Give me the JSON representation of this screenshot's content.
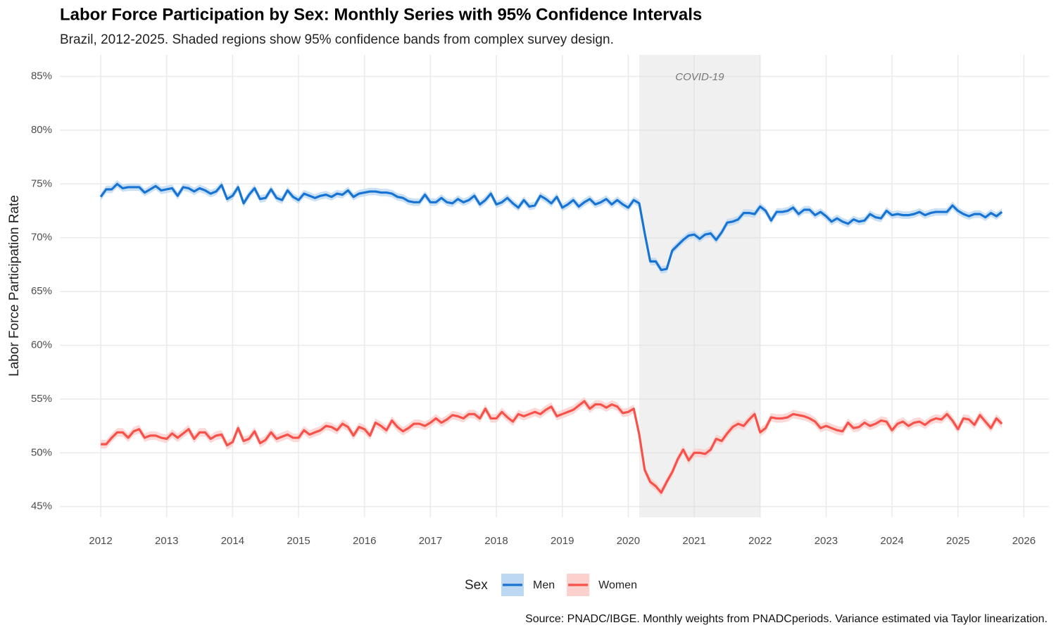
{
  "chart_data": {
    "type": "line",
    "title": "Labor Force Participation by Sex: Monthly Series with 95% Confidence Intervals",
    "subtitle": "Brazil, 2012-2025. Shaded regions show 95% confidence bands from complex survey design.",
    "y_label": "Labor Force Participation Rate",
    "caption": "Source: PNADC/IBGE. Monthly weights from PNADCperiods. Variance estimated via Taylor linearization.",
    "legend_title": "Sex",
    "legend_position": "bottom",
    "grid": true,
    "shaded_period": {
      "label": "COVID-19",
      "start": "2020-03",
      "end": "2022-01"
    },
    "xlim": [
      2011.38,
      2026.38
    ],
    "xticks": [
      2012,
      2013,
      2014,
      2015,
      2016,
      2017,
      2018,
      2019,
      2020,
      2021,
      2022,
      2023,
      2024,
      2025,
      2026
    ],
    "ylim": [
      44,
      87
    ],
    "yticks": [
      {
        "value": 45,
        "label": "45%"
      },
      {
        "value": 50,
        "label": "50%"
      },
      {
        "value": 55,
        "label": "55%"
      },
      {
        "value": 60,
        "label": "60%"
      },
      {
        "value": 65,
        "label": "65%"
      },
      {
        "value": 70,
        "label": "70%"
      },
      {
        "value": 75,
        "label": "75%"
      },
      {
        "value": 80,
        "label": "80%"
      },
      {
        "value": 85,
        "label": "85%"
      }
    ],
    "x": [
      "2012-01",
      "2012-02",
      "2012-03",
      "2012-04",
      "2012-05",
      "2012-06",
      "2012-07",
      "2012-08",
      "2012-09",
      "2012-10",
      "2012-11",
      "2012-12",
      "2013-01",
      "2013-02",
      "2013-03",
      "2013-04",
      "2013-05",
      "2013-06",
      "2013-07",
      "2013-08",
      "2013-09",
      "2013-10",
      "2013-11",
      "2013-12",
      "2014-01",
      "2014-02",
      "2014-03",
      "2014-04",
      "2014-05",
      "2014-06",
      "2014-07",
      "2014-08",
      "2014-09",
      "2014-10",
      "2014-11",
      "2014-12",
      "2015-01",
      "2015-02",
      "2015-03",
      "2015-04",
      "2015-05",
      "2015-06",
      "2015-07",
      "2015-08",
      "2015-09",
      "2015-10",
      "2015-11",
      "2015-12",
      "2016-01",
      "2016-02",
      "2016-03",
      "2016-04",
      "2016-05",
      "2016-06",
      "2016-07",
      "2016-08",
      "2016-09",
      "2016-10",
      "2016-11",
      "2016-12",
      "2017-01",
      "2017-02",
      "2017-03",
      "2017-04",
      "2017-05",
      "2017-06",
      "2017-07",
      "2017-08",
      "2017-09",
      "2017-10",
      "2017-11",
      "2017-12",
      "2018-01",
      "2018-02",
      "2018-03",
      "2018-04",
      "2018-05",
      "2018-06",
      "2018-07",
      "2018-08",
      "2018-09",
      "2018-10",
      "2018-11",
      "2018-12",
      "2019-01",
      "2019-02",
      "2019-03",
      "2019-04",
      "2019-05",
      "2019-06",
      "2019-07",
      "2019-08",
      "2019-09",
      "2019-10",
      "2019-11",
      "2019-12",
      "2020-01",
      "2020-02",
      "2020-03",
      "2020-04",
      "2020-05",
      "2020-06",
      "2020-07",
      "2020-08",
      "2020-09",
      "2020-10",
      "2020-11",
      "2020-12",
      "2021-01",
      "2021-02",
      "2021-03",
      "2021-04",
      "2021-05",
      "2021-06",
      "2021-07",
      "2021-08",
      "2021-09",
      "2021-10",
      "2021-11",
      "2021-12",
      "2022-01",
      "2022-02",
      "2022-03",
      "2022-04",
      "2022-05",
      "2022-06",
      "2022-07",
      "2022-08",
      "2022-09",
      "2022-10",
      "2022-11",
      "2022-12",
      "2023-01",
      "2023-02",
      "2023-03",
      "2023-04",
      "2023-05",
      "2023-06",
      "2023-07",
      "2023-08",
      "2023-09",
      "2023-10",
      "2023-11",
      "2023-12",
      "2024-01",
      "2024-02",
      "2024-03",
      "2024-04",
      "2024-05",
      "2024-06",
      "2024-07",
      "2024-08",
      "2024-09",
      "2024-10",
      "2024-11",
      "2024-12",
      "2025-01",
      "2025-02",
      "2025-03",
      "2025-04",
      "2025-05",
      "2025-06",
      "2025-07",
      "2025-08",
      "2025-09"
    ],
    "series": [
      {
        "name": "Men",
        "color": "#1874d2",
        "band_color": "#bcd8f3",
        "ci_half_width": 0.35,
        "values": [
          73.8,
          74.5,
          74.5,
          75.0,
          74.6,
          74.7,
          74.7,
          74.7,
          74.2,
          74.5,
          74.8,
          74.4,
          74.5,
          74.6,
          73.9,
          74.7,
          74.6,
          74.3,
          74.6,
          74.4,
          74.1,
          74.3,
          74.9,
          73.6,
          73.9,
          74.7,
          73.2,
          74.0,
          74.6,
          73.6,
          73.7,
          74.5,
          73.7,
          73.5,
          74.4,
          73.8,
          73.5,
          74.1,
          73.9,
          73.7,
          73.9,
          74.0,
          73.8,
          74.1,
          74.0,
          74.4,
          73.8,
          74.1,
          74.2,
          74.3,
          74.3,
          74.2,
          74.2,
          74.1,
          73.8,
          73.7,
          73.4,
          73.3,
          73.3,
          74.0,
          73.3,
          73.3,
          73.7,
          73.3,
          73.2,
          73.6,
          73.3,
          73.5,
          73.9,
          73.1,
          73.5,
          74.1,
          73.1,
          73.3,
          73.7,
          73.2,
          72.8,
          73.5,
          72.9,
          73.0,
          73.9,
          73.6,
          73.2,
          73.8,
          72.8,
          73.1,
          73.5,
          72.9,
          73.3,
          73.6,
          73.1,
          73.3,
          73.6,
          73.1,
          73.5,
          73.1,
          72.8,
          73.5,
          73.2,
          70.4,
          67.8,
          67.8,
          67.0,
          67.1,
          68.8,
          69.3,
          69.8,
          70.2,
          70.3,
          69.9,
          70.3,
          70.4,
          69.8,
          70.5,
          71.4,
          71.5,
          71.7,
          72.3,
          72.3,
          72.2,
          72.9,
          72.5,
          71.6,
          72.4,
          72.4,
          72.5,
          72.8,
          72.2,
          72.6,
          72.6,
          72.1,
          72.4,
          72.0,
          71.5,
          71.8,
          71.5,
          71.3,
          71.7,
          71.5,
          71.6,
          72.2,
          71.9,
          71.8,
          72.5,
          72.1,
          72.2,
          72.1,
          72.1,
          72.2,
          72.4,
          72.1,
          72.3,
          72.4,
          72.4,
          72.4,
          73.0,
          72.5,
          72.2,
          72.0,
          72.2,
          72.2,
          71.9,
          72.3,
          72.0,
          72.4
        ]
      },
      {
        "name": "Women",
        "color": "#f8514a",
        "band_color": "#fbd0cd",
        "ci_half_width": 0.4,
        "values": [
          50.8,
          50.8,
          51.4,
          51.9,
          51.9,
          51.4,
          52.0,
          52.2,
          51.4,
          51.6,
          51.6,
          51.4,
          51.3,
          51.8,
          51.4,
          51.8,
          52.2,
          51.3,
          51.9,
          51.9,
          51.3,
          51.6,
          51.7,
          50.7,
          51.0,
          52.3,
          51.1,
          51.3,
          52.0,
          50.9,
          51.2,
          51.9,
          51.3,
          51.5,
          51.7,
          51.4,
          51.4,
          52.1,
          51.7,
          51.9,
          52.1,
          52.5,
          52.4,
          52.1,
          52.7,
          52.4,
          51.6,
          52.4,
          52.2,
          51.6,
          52.8,
          52.5,
          52.1,
          53.0,
          52.4,
          52.0,
          52.3,
          52.7,
          52.7,
          52.5,
          52.8,
          53.2,
          52.8,
          53.1,
          53.5,
          53.4,
          53.2,
          53.6,
          53.6,
          53.2,
          54.1,
          53.2,
          53.2,
          53.8,
          53.3,
          52.9,
          53.6,
          53.4,
          53.6,
          53.8,
          53.6,
          54.0,
          54.3,
          53.4,
          53.6,
          53.8,
          54.0,
          54.4,
          54.8,
          54.1,
          54.5,
          54.5,
          54.2,
          54.5,
          54.3,
          53.7,
          53.8,
          54.1,
          51.7,
          48.4,
          47.3,
          46.9,
          46.3,
          47.3,
          48.2,
          49.4,
          50.3,
          49.3,
          50.0,
          50.0,
          49.9,
          50.3,
          51.3,
          51.1,
          51.8,
          52.4,
          52.7,
          52.5,
          53.1,
          53.6,
          51.9,
          52.3,
          53.3,
          53.2,
          53.2,
          53.3,
          53.6,
          53.5,
          53.4,
          53.2,
          52.9,
          52.3,
          52.5,
          52.3,
          52.1,
          52.0,
          52.8,
          52.3,
          52.4,
          52.8,
          52.5,
          52.7,
          53.0,
          52.9,
          52.1,
          52.7,
          52.9,
          52.5,
          52.8,
          52.9,
          52.6,
          53.0,
          53.2,
          53.1,
          53.6,
          53.0,
          52.2,
          53.2,
          53.1,
          52.6,
          53.5,
          52.9,
          52.3,
          53.2,
          52.7
        ]
      }
    ]
  }
}
